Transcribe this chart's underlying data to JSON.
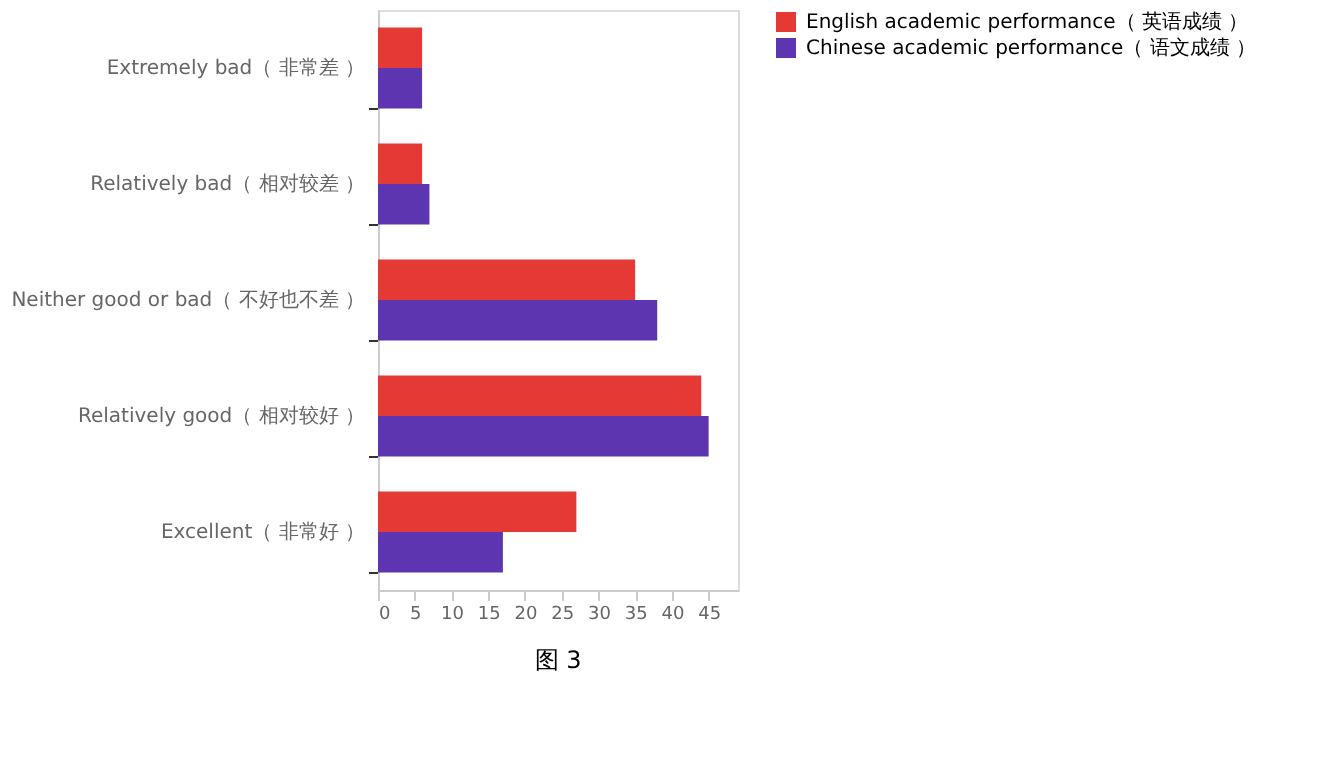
{
  "chart_data": {
    "type": "bar",
    "orientation": "horizontal",
    "categories": [
      "Extremely bad（ 非常差 ）",
      "Relatively bad（ 相对较差 ）",
      "Neither good or bad（ 不好也不差 ）",
      "Relatively good（ 相对较好 ）",
      "Excellent（ 非常好 ）"
    ],
    "series": [
      {
        "name": "English academic performance（ 英语成绩 ）",
        "color": "#e53935",
        "values": [
          6,
          6,
          35,
          44,
          27
        ]
      },
      {
        "name": "Chinese academic performance（ 语文成绩 ）",
        "color": "#5e35b1",
        "values": [
          6,
          7,
          38,
          45,
          17
        ]
      }
    ],
    "xlim": [
      0,
      49
    ],
    "xticks": [
      0,
      5,
      10,
      15,
      20,
      25,
      30,
      35,
      40,
      45
    ],
    "grid": false,
    "legend": "right",
    "annotations": [
      "图 3"
    ]
  }
}
